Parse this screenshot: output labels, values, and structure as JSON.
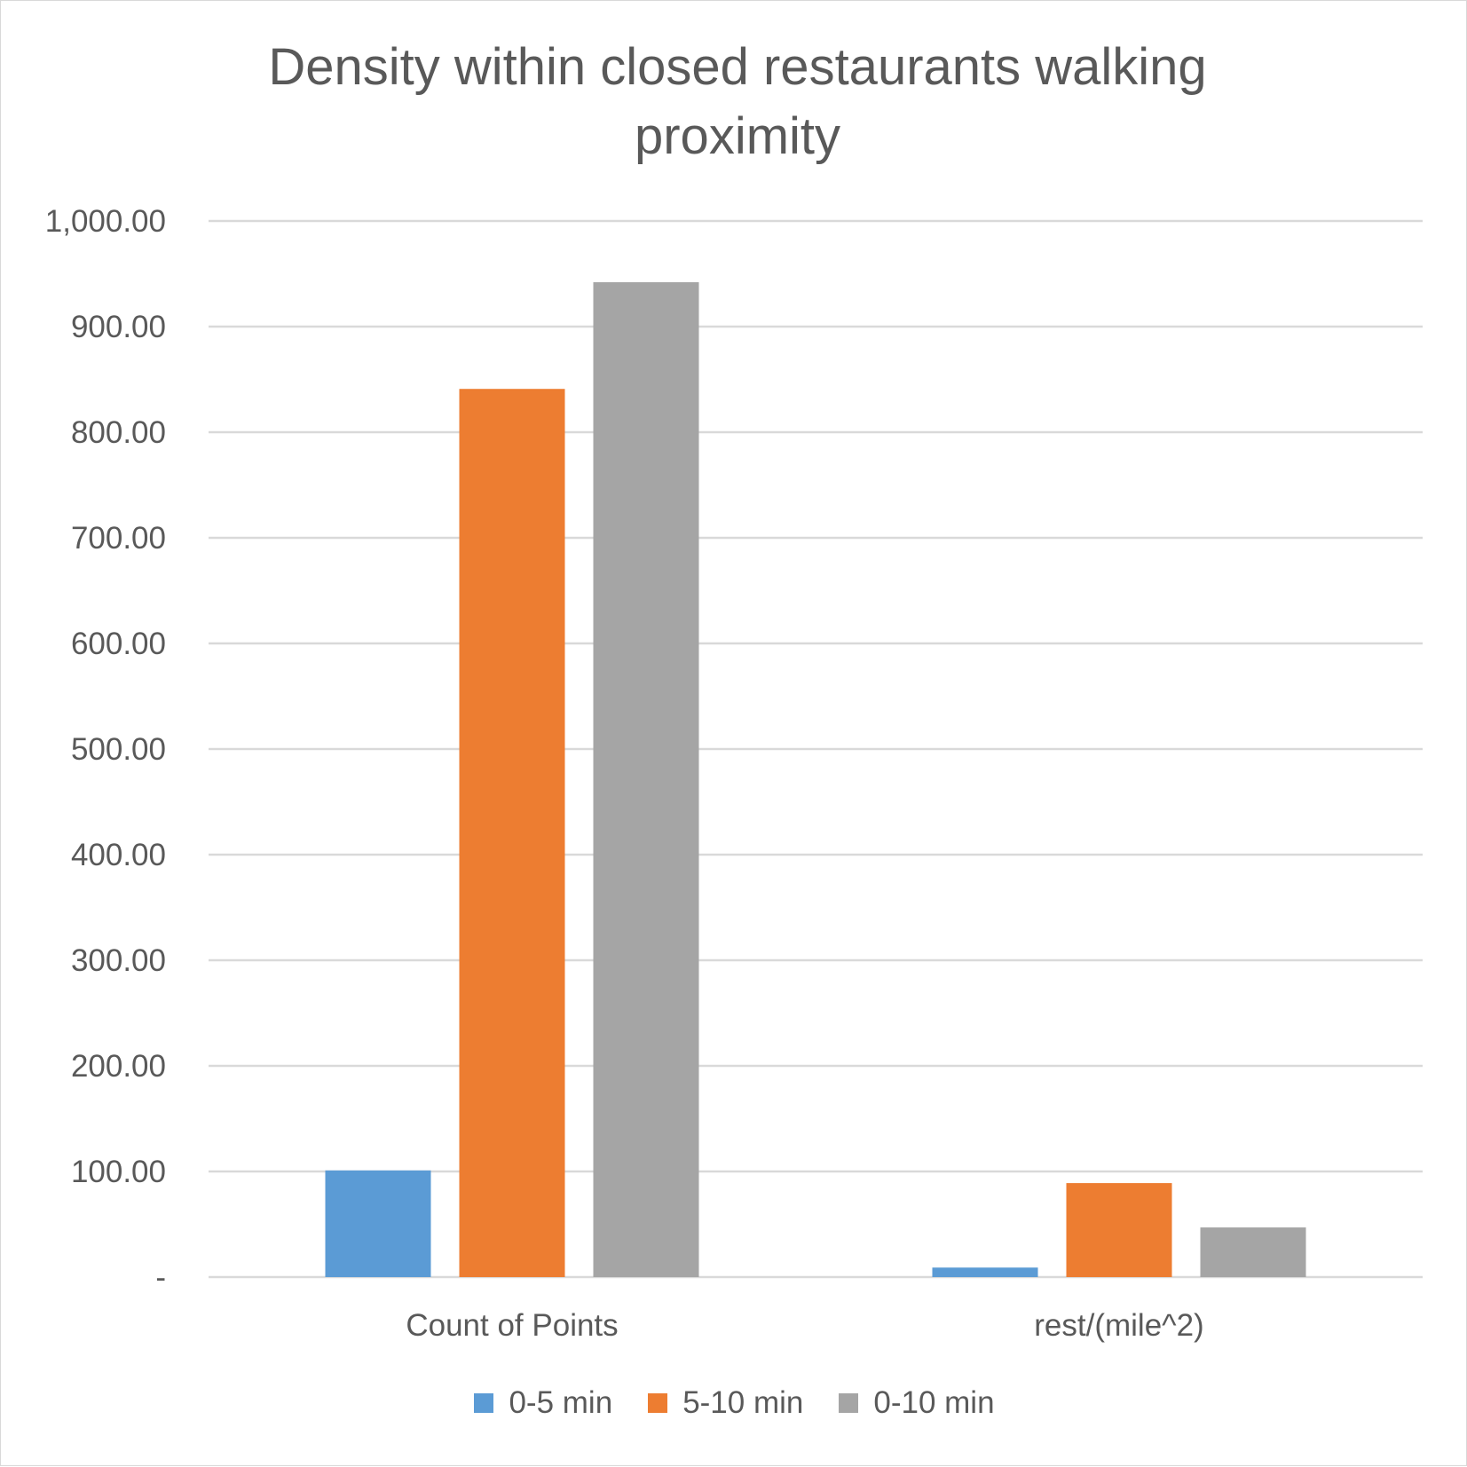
{
  "chart_data": {
    "type": "bar",
    "title": "Density within closed restaurants walking proximity",
    "categories": [
      "Count of Points",
      "rest/(mile^2)"
    ],
    "series": [
      {
        "name": "0-5 min",
        "color": "#5b9bd5",
        "values": [
          101,
          9
        ]
      },
      {
        "name": "5-10 min",
        "color": "#ed7d31",
        "values": [
          841,
          89
        ]
      },
      {
        "name": "0-10 min",
        "color": "#a5a5a5",
        "values": [
          942,
          47
        ]
      }
    ],
    "ylim": [
      0,
      1000
    ],
    "yticks": [
      0,
      100,
      200,
      300,
      400,
      500,
      600,
      700,
      800,
      900,
      1000
    ],
    "ytick_labels": [
      "-",
      "100.00",
      "200.00",
      "300.00",
      "400.00",
      "500.00",
      "600.00",
      "700.00",
      "800.00",
      "900.00",
      "1,000.00"
    ],
    "grid": true,
    "gridline_color": "#d9d9d9",
    "legend_position": "bottom",
    "xlabel": "",
    "ylabel": ""
  }
}
